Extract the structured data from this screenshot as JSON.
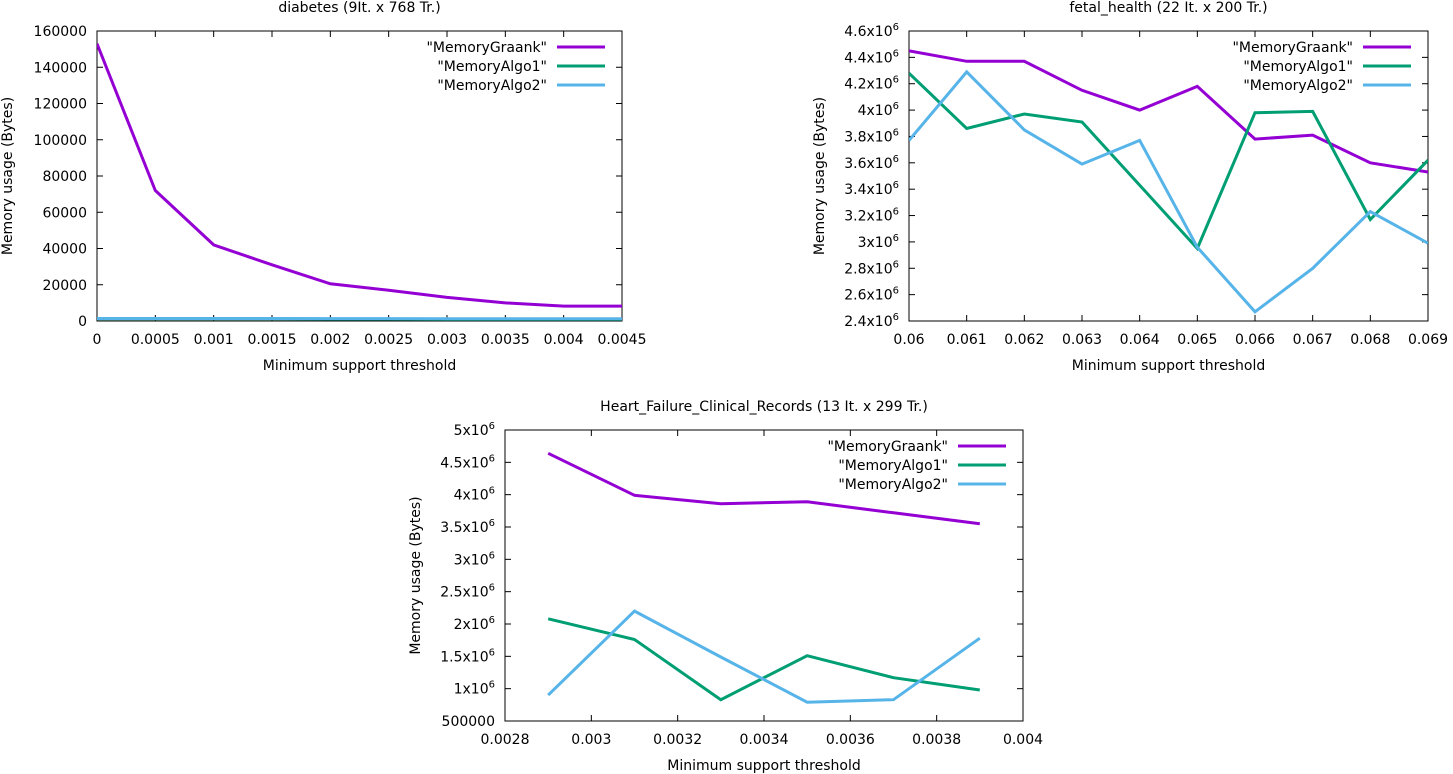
{
  "chart_data": [
    {
      "type": "line",
      "title": "diabetes (9It. x  768 Tr.)",
      "xlabel": "Minimum support threshold",
      "ylabel": "Memory usage (Bytes)",
      "xlim": [
        0,
        0.0045
      ],
      "ylim": [
        0,
        160000
      ],
      "xticks": [
        0,
        0.0005,
        0.001,
        0.0015,
        0.002,
        0.0025,
        0.003,
        0.0035,
        0.004,
        0.0045
      ],
      "xtick_labels": [
        "0",
        "0.0005",
        "0.001",
        "0.0015",
        "0.002",
        "0.0025",
        "0.003",
        "0.0035",
        "0.004",
        "0.0045"
      ],
      "yticks": [
        0,
        20000,
        40000,
        60000,
        80000,
        100000,
        120000,
        140000,
        160000
      ],
      "ytick_labels": [
        {
          "base": "0"
        },
        {
          "base": "20000"
        },
        {
          "base": "40000"
        },
        {
          "base": "60000"
        },
        {
          "base": "80000"
        },
        {
          "base": "100000"
        },
        {
          "base": "120000"
        },
        {
          "base": "140000"
        },
        {
          "base": "160000"
        }
      ],
      "legend_position": "top-right",
      "series": [
        {
          "name": "\"MemoryGraank\"",
          "color": "#9400d3",
          "x": [
            0,
            0.0005,
            0.001,
            0.0015,
            0.002,
            0.0025,
            0.003,
            0.0035,
            0.004,
            0.0045
          ],
          "y": [
            153000,
            72000,
            42000,
            31000,
            20500,
            17000,
            13000,
            10000,
            8200,
            8200
          ]
        },
        {
          "name": "\"MemoryAlgo1\"",
          "color": "#009e73",
          "x": [
            0,
            0.0005,
            0.001,
            0.0015,
            0.002,
            0.0025,
            0.003,
            0.0035,
            0.004,
            0.0045
          ],
          "y": [
            1200,
            1200,
            1200,
            1200,
            1100,
            1100,
            1000,
            1000,
            1000,
            1000
          ]
        },
        {
          "name": "\"MemoryAlgo2\"",
          "color": "#56b4e9",
          "x": [
            0,
            0.0005,
            0.001,
            0.0015,
            0.002,
            0.0025,
            0.003,
            0.0035,
            0.004,
            0.0045
          ],
          "y": [
            1400,
            1400,
            1400,
            1400,
            1300,
            1300,
            1200,
            1200,
            1200,
            1200
          ]
        }
      ]
    },
    {
      "type": "line",
      "title": "fetal_health (22 It. x  200 Tr.)",
      "xlabel": "Minimum support threshold",
      "ylabel": "Memory usage (Bytes)",
      "xlim": [
        0.06,
        0.069
      ],
      "ylim": [
        2400000,
        4600000
      ],
      "xticks": [
        0.06,
        0.061,
        0.062,
        0.063,
        0.064,
        0.065,
        0.066,
        0.067,
        0.068,
        0.069
      ],
      "xtick_labels": [
        "0.06",
        "0.061",
        "0.062",
        "0.063",
        "0.064",
        "0.065",
        "0.066",
        "0.067",
        "0.068",
        "0.069"
      ],
      "yticks": [
        2400000,
        2600000,
        2800000,
        3000000,
        3200000,
        3400000,
        3600000,
        3800000,
        4000000,
        4200000,
        4400000,
        4600000
      ],
      "ytick_labels": [
        {
          "base": "2.4x10",
          "exp": "6"
        },
        {
          "base": "2.6x10",
          "exp": "6"
        },
        {
          "base": "2.8x10",
          "exp": "6"
        },
        {
          "base": "3x10",
          "exp": "6"
        },
        {
          "base": "3.2x10",
          "exp": "6"
        },
        {
          "base": "3.4x10",
          "exp": "6"
        },
        {
          "base": "3.6x10",
          "exp": "6"
        },
        {
          "base": "3.8x10",
          "exp": "6"
        },
        {
          "base": "4x10",
          "exp": "6"
        },
        {
          "base": "4.2x10",
          "exp": "6"
        },
        {
          "base": "4.4x10",
          "exp": "6"
        },
        {
          "base": "4.6x10",
          "exp": "6"
        }
      ],
      "legend_position": "top-right",
      "series": [
        {
          "name": "\"MemoryGraank\"",
          "color": "#9400d3",
          "x": [
            0.06,
            0.061,
            0.062,
            0.063,
            0.064,
            0.065,
            0.066,
            0.067,
            0.068,
            0.069
          ],
          "y": [
            4450000,
            4370000,
            4370000,
            4150000,
            4000000,
            4180000,
            3780000,
            3810000,
            3600000,
            3530000
          ]
        },
        {
          "name": "\"MemoryAlgo1\"",
          "color": "#009e73",
          "x": [
            0.06,
            0.061,
            0.062,
            0.063,
            0.064,
            0.065,
            0.066,
            0.067,
            0.068,
            0.069
          ],
          "y": [
            4280000,
            3860000,
            3970000,
            3910000,
            3430000,
            2950000,
            3980000,
            3990000,
            3170000,
            3620000
          ]
        },
        {
          "name": "\"MemoryAlgo2\"",
          "color": "#56b4e9",
          "x": [
            0.06,
            0.061,
            0.062,
            0.063,
            0.064,
            0.065,
            0.066,
            0.067,
            0.068,
            0.069
          ],
          "y": [
            3770000,
            4290000,
            3850000,
            3590000,
            3770000,
            2960000,
            2470000,
            2800000,
            3230000,
            2990000
          ]
        }
      ]
    },
    {
      "type": "line",
      "title": "Heart_Failure_Clinical_Records (13 It. x  299 Tr.)",
      "xlabel": "Minimum support threshold",
      "ylabel": "Memory usage (Bytes)",
      "xlim": [
        0.0028,
        0.004
      ],
      "ylim": [
        500000,
        5000000
      ],
      "xticks": [
        0.0028,
        0.003,
        0.0032,
        0.0034,
        0.0036,
        0.0038,
        0.004
      ],
      "xtick_labels": [
        "0.0028",
        "0.003",
        "0.0032",
        "0.0034",
        "0.0036",
        "0.0038",
        "0.004"
      ],
      "yticks": [
        500000,
        1000000,
        1500000,
        2000000,
        2500000,
        3000000,
        3500000,
        4000000,
        4500000,
        5000000
      ],
      "ytick_labels": [
        {
          "base": "500000"
        },
        {
          "base": "1x10",
          "exp": "6"
        },
        {
          "base": "1.5x10",
          "exp": "6"
        },
        {
          "base": "2x10",
          "exp": "6"
        },
        {
          "base": "2.5x10",
          "exp": "6"
        },
        {
          "base": "3x10",
          "exp": "6"
        },
        {
          "base": "3.5x10",
          "exp": "6"
        },
        {
          "base": "4x10",
          "exp": "6"
        },
        {
          "base": "4.5x10",
          "exp": "6"
        },
        {
          "base": "5x10",
          "exp": "6"
        }
      ],
      "legend_position": "top-right",
      "series": [
        {
          "name": "\"MemoryGraank\"",
          "color": "#9400d3",
          "x": [
            0.0029,
            0.0031,
            0.0033,
            0.0035,
            0.0037,
            0.0039
          ],
          "y": [
            4640000,
            3990000,
            3860000,
            3890000,
            3720000,
            3550000
          ]
        },
        {
          "name": "\"MemoryAlgo1\"",
          "color": "#009e73",
          "x": [
            0.0029,
            0.0031,
            0.0033,
            0.0035,
            0.0037,
            0.0039
          ],
          "y": [
            2080000,
            1760000,
            830000,
            1510000,
            1170000,
            980000
          ]
        },
        {
          "name": "\"MemoryAlgo2\"",
          "color": "#56b4e9",
          "x": [
            0.0029,
            0.0031,
            0.0033,
            0.0035,
            0.0037,
            0.0039
          ],
          "y": [
            900000,
            2200000,
            1490000,
            790000,
            830000,
            1780000
          ]
        }
      ]
    }
  ]
}
